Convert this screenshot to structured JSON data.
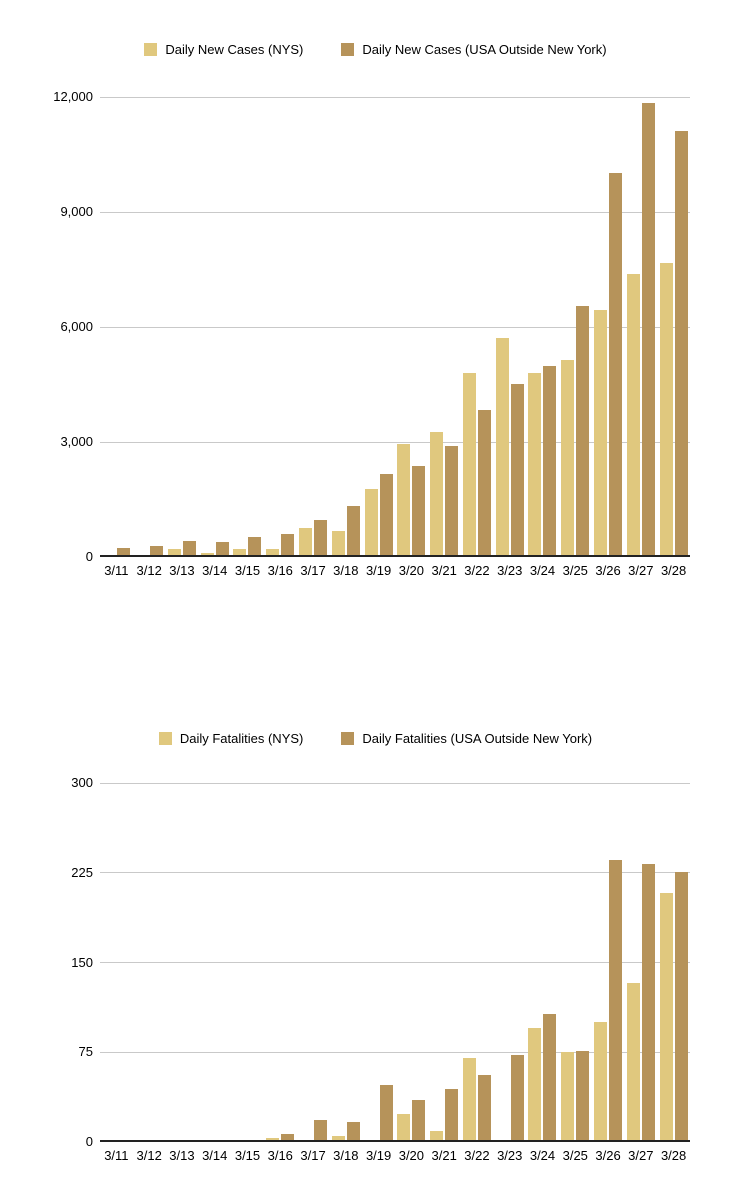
{
  "page": {
    "background": "#ffffff"
  },
  "colors": {
    "nys_series": "#e0c87e",
    "usa_series": "#b6935a",
    "gridline": "#c9c9c9",
    "axis_line": "#222222",
    "text": "#000000"
  },
  "chart_data": [
    {
      "type": "bar",
      "title": "",
      "legend_position": "top",
      "grid": true,
      "categories": [
        "3/11",
        "3/12",
        "3/13",
        "3/14",
        "3/15",
        "3/16",
        "3/17",
        "3/18",
        "3/19",
        "3/20",
        "3/21",
        "3/22",
        "3/23",
        "3/24",
        "3/25",
        "3/26",
        "3/27",
        "3/28"
      ],
      "series": [
        {
          "name": "Daily New Cases (NYS)",
          "color": "#e0c87e",
          "values": [
            0,
            0,
            200,
            100,
            210,
            220,
            750,
            680,
            1770,
            2950,
            3250,
            4810,
            5710,
            4790,
            5150,
            6450,
            7380,
            7680
          ]
        },
        {
          "name": "Daily New Cases (USA Outside New York)",
          "color": "#b6935a",
          "values": [
            230,
            290,
            420,
            400,
            510,
            600,
            970,
            1330,
            2170,
            2380,
            2900,
            3830,
            4510,
            4980,
            6550,
            10020,
            11850,
            11120
          ]
        }
      ],
      "ylim": [
        0,
        12000
      ],
      "yticks": [
        0,
        3000,
        6000,
        9000,
        12000
      ],
      "ytick_labels": [
        "0",
        "3,000",
        "6,000",
        "9,000",
        "12,000"
      ]
    },
    {
      "type": "bar",
      "title": "",
      "legend_position": "top",
      "grid": true,
      "categories": [
        "3/11",
        "3/12",
        "3/13",
        "3/14",
        "3/15",
        "3/16",
        "3/17",
        "3/18",
        "3/19",
        "3/20",
        "3/21",
        "3/22",
        "3/23",
        "3/24",
        "3/25",
        "3/26",
        "3/27",
        "3/28"
      ],
      "series": [
        {
          "name": "Daily Fatalities (NYS)",
          "color": "#e0c87e",
          "values": [
            0,
            0,
            0,
            0,
            0,
            3,
            0,
            5,
            0,
            23,
            9,
            70,
            0,
            95,
            75,
            100,
            133,
            208
          ]
        },
        {
          "name": "Daily Fatalities (USA Outside New York)",
          "color": "#b6935a",
          "values": [
            0,
            0,
            0,
            0,
            0,
            7,
            18,
            17,
            48,
            35,
            44,
            56,
            73,
            107,
            76,
            236,
            232,
            226
          ]
        }
      ],
      "ylim": [
        0,
        300
      ],
      "yticks": [
        0,
        75,
        150,
        225,
        300
      ],
      "ytick_labels": [
        "0",
        "75",
        "150",
        "225",
        "300"
      ]
    }
  ]
}
